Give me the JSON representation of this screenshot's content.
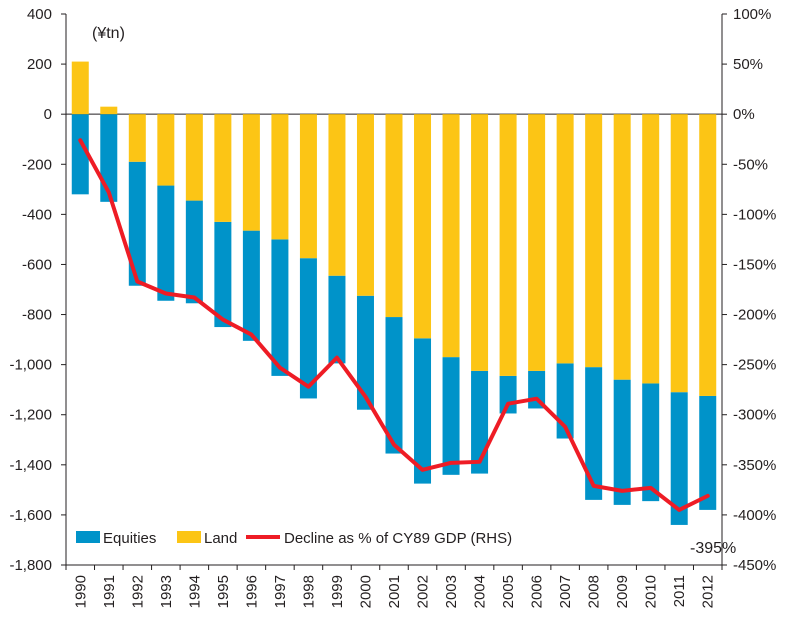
{
  "chart_data": {
    "type": "bar",
    "stacked": true,
    "unit_label": "(¥tn)",
    "categories": [
      "1990",
      "1991",
      "1992",
      "1993",
      "1994",
      "1995",
      "1996",
      "1997",
      "1998",
      "1999",
      "2000",
      "2001",
      "2002",
      "2003",
      "2004",
      "2005",
      "2006",
      "2007",
      "2008",
      "2009",
      "2010",
      "2011",
      "2012"
    ],
    "series": [
      {
        "name": "Equities",
        "color": "#0093c9",
        "values": [
          -320,
          -350,
          -495,
          -460,
          -410,
          -420,
          -440,
          -545,
          -560,
          -350,
          -455,
          -545,
          -580,
          -470,
          -410,
          -150,
          -150,
          -300,
          -530,
          -500,
          -470,
          -530,
          -455
        ]
      },
      {
        "name": "Land",
        "color": "#fcc515",
        "values": [
          210,
          30,
          -190,
          -285,
          -345,
          -430,
          -465,
          -500,
          -575,
          -645,
          -725,
          -810,
          -895,
          -970,
          -1025,
          -1045,
          -1025,
          -995,
          -1010,
          -1060,
          -1075,
          -1110,
          -1125
        ]
      }
    ],
    "line_series": {
      "name": "Decline as % of CY89 GDP (RHS)",
      "color": "#ee1c25",
      "axis": "right",
      "values": [
        -26,
        -78,
        -167,
        -179,
        -183,
        -205,
        -220,
        -253,
        -272,
        -243,
        -282,
        -330,
        -355,
        -348,
        -347,
        -289,
        -284,
        -312,
        -371,
        -376,
        -373,
        -395,
        -381
      ]
    },
    "annotation": "-395%",
    "y_left": {
      "ylim": [
        -1800,
        400
      ],
      "ticks": [
        400,
        200,
        0,
        -200,
        -400,
        -600,
        -800,
        -1000,
        -1200,
        -1400,
        -1600,
        -1800
      ],
      "tick_labels": [
        "400",
        "200",
        "0",
        "-200",
        "-400",
        "-600",
        "-800",
        "-1,000",
        "-1,200",
        "-1,400",
        "-1,600",
        "-1,800"
      ]
    },
    "y_right": {
      "ylim": [
        -450,
        100
      ],
      "ticks": [
        100,
        50,
        0,
        -50,
        -100,
        -150,
        -200,
        -250,
        -300,
        -350,
        -400,
        -450
      ],
      "tick_labels": [
        "100%",
        "50%",
        "0%",
        "-50%",
        "-100%",
        "-150%",
        "-200%",
        "-250%",
        "-300%",
        "-350%",
        "-400%",
        "-450%"
      ]
    },
    "legend": {
      "placement": "bottom-left",
      "items": [
        "Equities",
        "Land",
        "Decline as % of CY89 GDP (RHS)"
      ]
    },
    "grid": false
  }
}
